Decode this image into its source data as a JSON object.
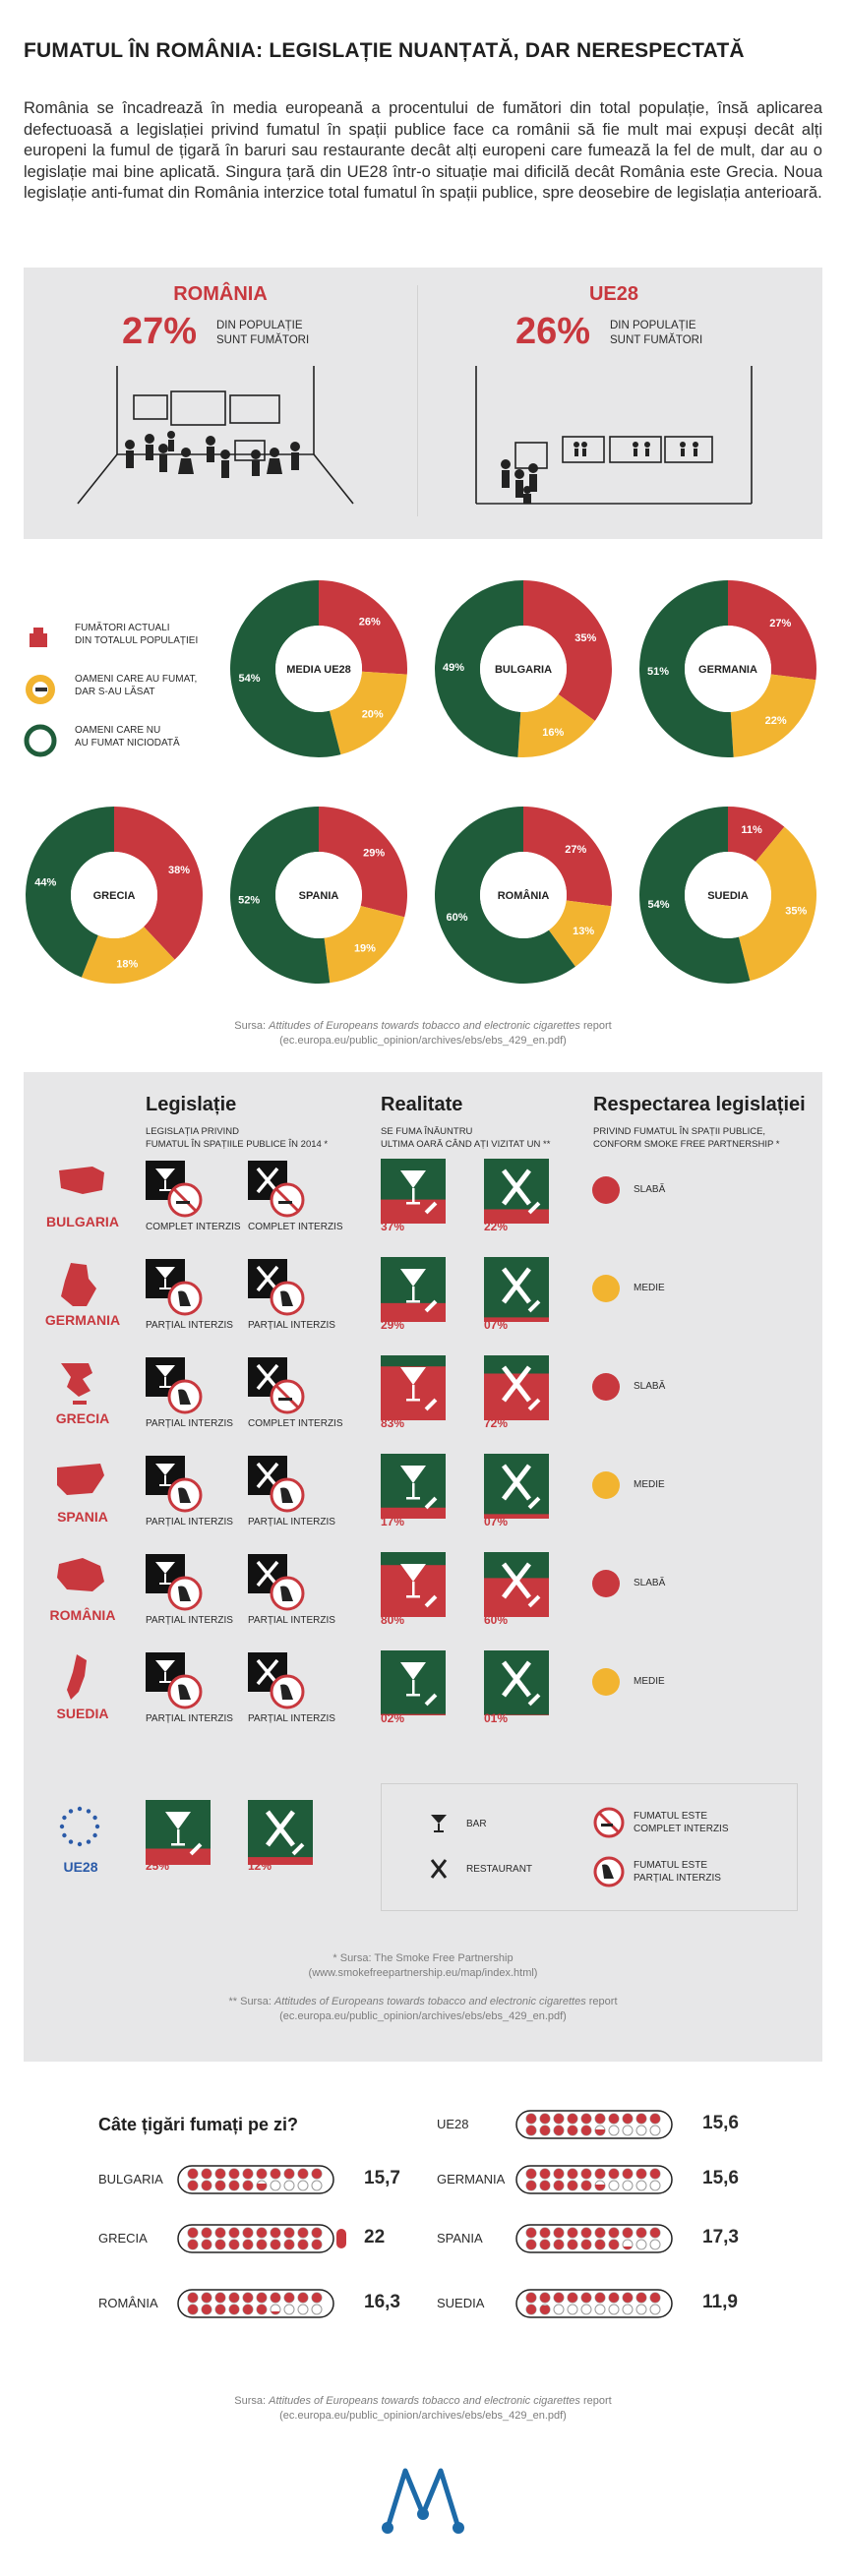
{
  "title": "FUMATUL ÎN ROMÂNIA: LEGISLAȚIE NUANȚATĂ, DAR NERESPECTATĂ",
  "intro": "România se încadrează în media europeană a procentului de fumători din total populație, însă aplicarea defectuoasă a legislației privind fumatul în spații publice face ca românii să fie mult mai expuși decât alți europeni la fumul de țigară în baruri sau restaurante decât alți europeni care fumează la fel de mult, dar au o legislație mai bine aplicată. Singura țară din UE28 într-o situație mai dificilă decât România este Grecia. Noua legislație anti-fumat din România interzice total fumatul în spații publice, spre deosebire de legislația anterioară.",
  "compare": {
    "left": {
      "name": "ROMÂNIA",
      "pct": "27%",
      "text1": "DIN POPULAȚIE",
      "text2": "SUNT FUMĂTORI"
    },
    "right": {
      "name": "UE28",
      "pct": "26%",
      "text1": "DIN POPULAȚIE",
      "text2": "SUNT FUMĂTORI"
    }
  },
  "legend": [
    {
      "line1": "FUMĂTORI ACTUALI",
      "line2": "DIN TOTALUL POPULAȚIEI",
      "color": "#c8383e",
      "icon": "person-smoking-icon"
    },
    {
      "line1": "OAMENI CARE AU FUMAT,",
      "line2": "DAR S-AU LĂSAT",
      "color": "#f2b430",
      "icon": "no-smoking-icon"
    },
    {
      "line1": "OAMENI CARE NU",
      "line2": "AU FUMAT NICIODATĂ",
      "color": "#1f5c3a",
      "icon": "ring-icon"
    }
  ],
  "colors": {
    "red": "#c8383e",
    "yellow": "#f2b430",
    "green": "#1f5c3a",
    "grey": "#e7e7e8"
  },
  "donuts": [
    {
      "name": "MEDIA UE28",
      "current": 26,
      "former": 20,
      "never": 54,
      "current_lbl": "26%",
      "former_lbl": "20%",
      "never_lbl": "54%"
    },
    {
      "name": "BULGARIA",
      "current": 35,
      "former": 16,
      "never": 49,
      "current_lbl": "35%",
      "former_lbl": "16%",
      "never_lbl": "49%"
    },
    {
      "name": "GERMANIA",
      "current": 27,
      "former": 22,
      "never": 51,
      "current_lbl": "27%",
      "former_lbl": "22%",
      "never_lbl": "51%"
    },
    {
      "name": "GRECIA",
      "current": 38,
      "former": 18,
      "never": 44,
      "current_lbl": "38%",
      "former_lbl": "18%",
      "never_lbl": "44%"
    },
    {
      "name": "SPANIA",
      "current": 29,
      "former": 19,
      "never": 52,
      "current_lbl": "29%",
      "former_lbl": "19%",
      "never_lbl": "52%"
    },
    {
      "name": "ROMÂNIA",
      "current": 27,
      "former": 13,
      "never": 60,
      "current_lbl": "27%",
      "former_lbl": "13%",
      "never_lbl": "60%"
    },
    {
      "name": "SUEDIA",
      "current": 11,
      "former": 35,
      "never": 54,
      "current_lbl": "11%",
      "former_lbl": "35%",
      "never_lbl": "54%"
    }
  ],
  "source1": {
    "prefix": "Sursa: ",
    "title": "Attitudes of Europeans towards tobacco and electronic cigarettes",
    "suffix": " report",
    "url": "(ec.europa.eu/public_opinion/archives/ebs/ebs_429_en.pdf)"
  },
  "legislation": {
    "head_leg": "Legislație",
    "sub_leg1": "LEGISLAȚIA PRIVIND",
    "sub_leg2": "FUMATUL ÎN SPAȚIILE PUBLICE ÎN 2014 *",
    "head_real": "Realitate",
    "sub_real1": "SE FUMA ÎNĂUNTRU",
    "sub_real2": "ULTIMA OARĂ CÂND AȚI VIZITAT UN **",
    "head_resp": "Respectarea legislației",
    "sub_resp1": "PRIVIND FUMATUL ÎN SPAȚII PUBLICE,",
    "sub_resp2": "CONFORM SMOKE FREE PARTNERSHIP *",
    "rows": [
      {
        "country": "BULGARIA",
        "bar_law": "COMPLET INTERZIS",
        "rest_law": "COMPLET INTERZIS",
        "bar_full": true,
        "rest_full": true,
        "bar_real": "37%",
        "bar_v": 37,
        "rest_real": "22%",
        "rest_v": 22,
        "resp": "SLABĂ",
        "resp_color": "#c8383e"
      },
      {
        "country": "GERMANIA",
        "bar_law": "PARȚIAL INTERZIS",
        "rest_law": "PARȚIAL INTERZIS",
        "bar_full": false,
        "rest_full": false,
        "bar_real": "29%",
        "bar_v": 29,
        "rest_real": "07%",
        "rest_v": 7,
        "resp": "MEDIE",
        "resp_color": "#f2b430"
      },
      {
        "country": "GRECIA",
        "bar_law": "PARȚIAL INTERZIS",
        "rest_law": "COMPLET INTERZIS",
        "bar_full": false,
        "rest_full": true,
        "bar_real": "83%",
        "bar_v": 83,
        "rest_real": "72%",
        "rest_v": 72,
        "resp": "SLABĂ",
        "resp_color": "#c8383e"
      },
      {
        "country": "SPANIA",
        "bar_law": "PARȚIAL INTERZIS",
        "rest_law": "PARȚIAL INTERZIS",
        "bar_full": false,
        "rest_full": false,
        "bar_real": "17%",
        "bar_v": 17,
        "rest_real": "07%",
        "rest_v": 7,
        "resp": "MEDIE",
        "resp_color": "#f2b430"
      },
      {
        "country": "ROMÂNIA",
        "bar_law": "PARȚIAL INTERZIS",
        "rest_law": "PARȚIAL INTERZIS",
        "bar_full": false,
        "rest_full": false,
        "bar_real": "80%",
        "bar_v": 80,
        "rest_real": "60%",
        "rest_v": 60,
        "resp": "SLABĂ",
        "resp_color": "#c8383e"
      },
      {
        "country": "SUEDIA",
        "bar_law": "PARȚIAL INTERZIS",
        "rest_law": "PARȚIAL INTERZIS",
        "bar_full": false,
        "rest_full": false,
        "bar_real": "02%",
        "bar_v": 2,
        "rest_real": "01%",
        "rest_v": 1,
        "resp": "MEDIE",
        "resp_color": "#f2b430"
      }
    ],
    "eu": {
      "name": "UE28",
      "bar_real": "25%",
      "bar_v": 25,
      "rest_real": "12%",
      "rest_v": 12
    },
    "legend": {
      "bar": "BAR",
      "restaurant": "RESTAURANT",
      "full1": "FUMATUL ESTE",
      "full2": "COMPLET INTERZIS",
      "part1": "FUMATUL ESTE",
      "part2": "PARȚIAL INTERZIS"
    },
    "src_a1": "* Sursa: The Smoke Free Partnership",
    "src_a2": "(www.smokefreepartnership.eu/map/index.html)",
    "src_b_prefix": "** Sursa: ",
    "src_b_title": "Attitudes of Europeans towards tobacco and electronic cigarettes",
    "src_b_suffix": " report",
    "src_b_url": "(ec.europa.eu/public_opinion/archives/ebs/ebs_429_en.pdf)"
  },
  "cigarettes": {
    "title": "Câte țigări fumați pe zi?",
    "items": [
      {
        "name": "UE28",
        "value": 15.6,
        "label": "15,6"
      },
      {
        "name": "BULGARIA",
        "value": 15.7,
        "label": "15,7"
      },
      {
        "name": "GERMANIA",
        "value": 15.6,
        "label": "15,6"
      },
      {
        "name": "GRECIA",
        "value": 22,
        "label": "22"
      },
      {
        "name": "SPANIA",
        "value": 17.3,
        "label": "17,3"
      },
      {
        "name": "ROMÂNIA",
        "value": 16.3,
        "label": "16,3"
      },
      {
        "name": "SUEDIA",
        "value": 11.9,
        "label": "11,9"
      }
    ]
  },
  "source3": {
    "prefix": "Sursa: ",
    "title": "Attitudes of Europeans towards tobacco and electronic cigarettes",
    "suffix": " report",
    "url": "(ec.europa.eu/public_opinion/archives/ebs/ebs_429_en.pdf)"
  }
}
